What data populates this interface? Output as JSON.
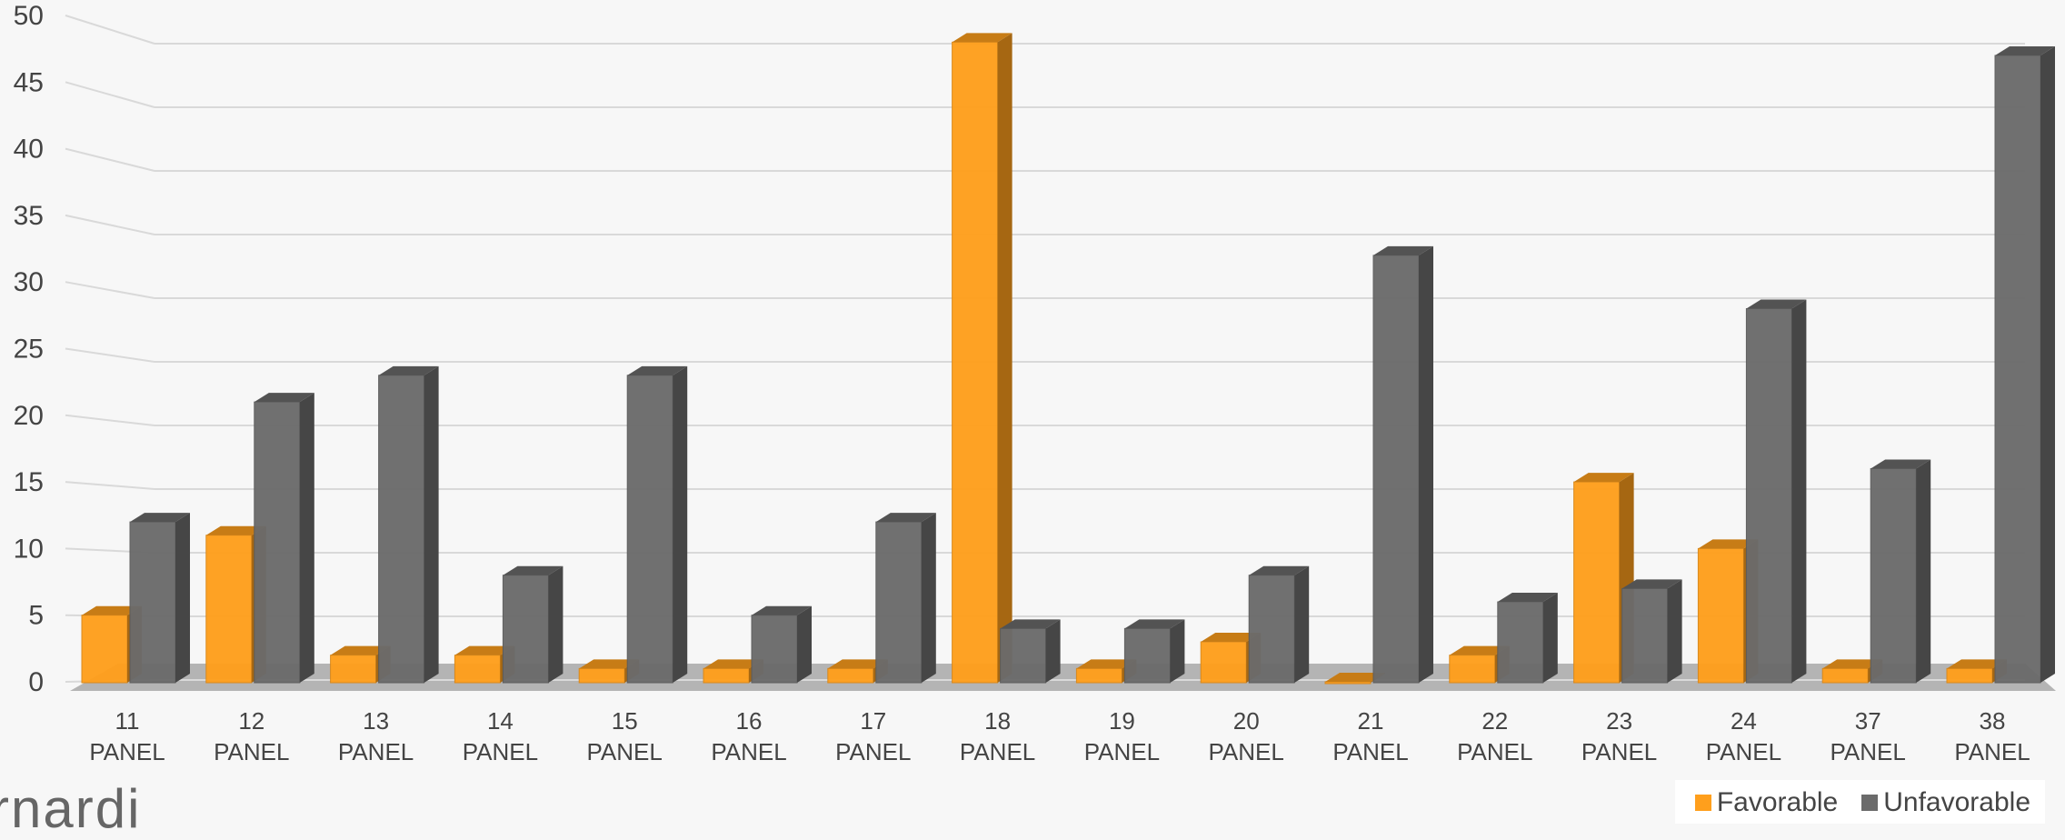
{
  "chart_data": {
    "type": "bar",
    "style": "3d-clustered",
    "categories": [
      [
        "11",
        "PANEL"
      ],
      [
        "12",
        "PANEL"
      ],
      [
        "13",
        "PANEL"
      ],
      [
        "14",
        "PANEL"
      ],
      [
        "15",
        "PANEL"
      ],
      [
        "16",
        "PANEL"
      ],
      [
        "17",
        "PANEL"
      ],
      [
        "18",
        "PANEL"
      ],
      [
        "19",
        "PANEL"
      ],
      [
        "20",
        "PANEL"
      ],
      [
        "21",
        "PANEL"
      ],
      [
        "22",
        "PANEL"
      ],
      [
        "23",
        "PANEL"
      ],
      [
        "24",
        "PANEL"
      ],
      [
        "37",
        "PANEL"
      ],
      [
        "38",
        "PANEL"
      ]
    ],
    "series": [
      {
        "name": "Favorable",
        "color": "#ff9f1c",
        "values": [
          5,
          11,
          2,
          2,
          1,
          1,
          1,
          48,
          1,
          3,
          0,
          2,
          15,
          10,
          1,
          1
        ]
      },
      {
        "name": "Unfavorable",
        "color": "#6b6b6b",
        "values": [
          12,
          21,
          23,
          8,
          23,
          5,
          12,
          4,
          4,
          8,
          32,
          6,
          7,
          28,
          16,
          47
        ]
      }
    ],
    "yticks": [
      "0",
      "5",
      "10",
      "15",
      "20",
      "25",
      "30",
      "35",
      "40",
      "45",
      "50"
    ],
    "ylim": [
      0,
      50
    ],
    "grid": true,
    "legend_position": "bottom-right"
  },
  "brand": {
    "text": "rnardi"
  }
}
